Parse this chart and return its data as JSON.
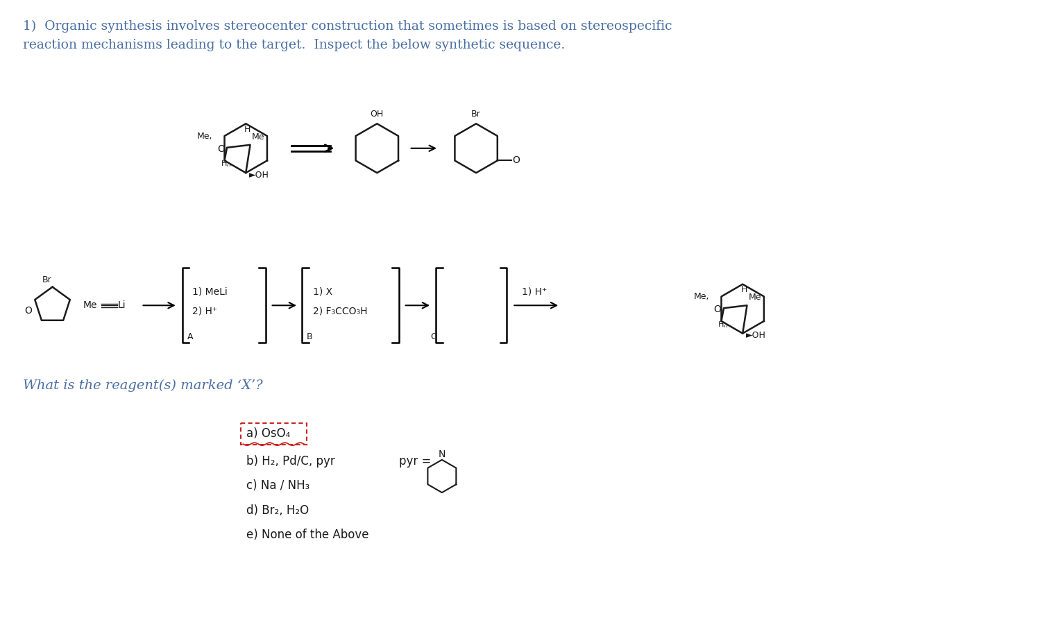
{
  "bg_color": "#ffffff",
  "text_color_blue": "#4a6fa5",
  "text_color_black": "#1a1a1a",
  "title_line1": "1)  Organic synthesis involves stereocenter construction that sometimes is based on stereospecific",
  "title_line2": "reaction mechanisms leading to the target.  Inspect the below synthetic sequence.",
  "question": "What is the reagent(s) marked ‘X’?",
  "answer_a": "a) OsO₄",
  "answer_b": "b) H₂, Pd/C, pyr",
  "answer_c": "c) Na / NH₃",
  "answer_d": "d) Br₂, H₂O",
  "answer_e": "e) None of the Above",
  "pyr_label": "pyr =",
  "figsize": [
    15.16,
    9.14
  ],
  "dpi": 100
}
